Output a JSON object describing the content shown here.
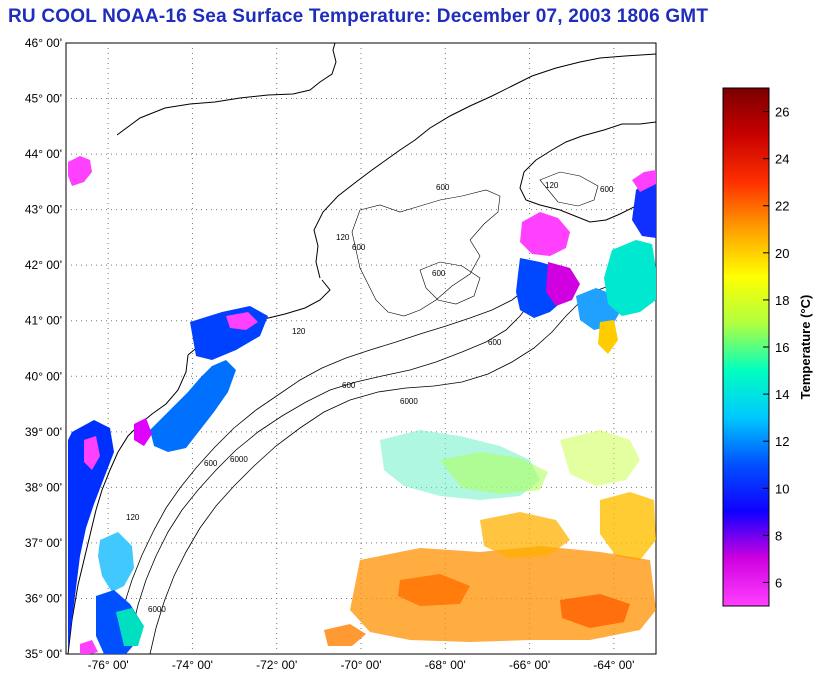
{
  "title": "RU COOL  NOAA-16  Sea Surface Temperature:  December 07, 2003 1806 GMT",
  "map": {
    "lat_labels": [
      "46° 00'",
      "45° 00'",
      "44° 00'",
      "43° 00'",
      "42° 00'",
      "41° 00'",
      "40° 00'",
      "39° 00'",
      "38° 00'",
      "37° 00'",
      "36° 00'",
      "35° 00'"
    ],
    "lon_labels": [
      "-76° 00'",
      "-74° 00'",
      "-72° 00'",
      "-70° 00'",
      "-68° 00'",
      "-66° 00'",
      "-64° 00'"
    ],
    "lat_range": [
      35,
      46
    ],
    "lon_range": [
      -77,
      -63
    ],
    "isobaths": [
      "120",
      "600",
      "6000"
    ],
    "grid": true
  },
  "colorbar": {
    "label": "Temperature (°C)",
    "ticks": [
      "26",
      "24",
      "22",
      "20",
      "18",
      "16",
      "14",
      "12",
      "10",
      "8",
      "6"
    ],
    "range": [
      5,
      27
    ],
    "stops": [
      "#ff40ff",
      "#d000e0",
      "#1000ff",
      "#0050ff",
      "#00c8ff",
      "#00ffc0",
      "#b0ff40",
      "#ffff00",
      "#ffa000",
      "#ff3000",
      "#c80000",
      "#7a0000"
    ]
  }
}
